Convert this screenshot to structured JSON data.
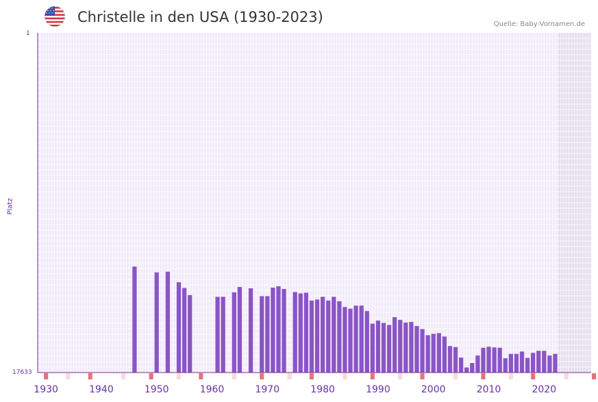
{
  "header": {
    "title": "Christelle in den USA (1930-2023)",
    "source": "Quelle: Baby-Vornamen.de",
    "flag_icon": "us-flag-icon"
  },
  "colors": {
    "bar": "#8a55c6",
    "grid_bg": "#f1ebf9",
    "grid_line": "#ffffff",
    "future_bg": "#e3dfec",
    "axis": "#7b2a8c",
    "marker_strong": "#e6737d",
    "marker_light": "#f9d9dd",
    "tick_label": "#6a2fa0"
  },
  "chart_data": {
    "type": "bar",
    "title": "Christelle in den USA (1930-2023)",
    "xlabel": "",
    "ylabel": "Platz",
    "y_top_label": "1",
    "y_bottom_label": "17633",
    "xlim": [
      1929,
      2029
    ],
    "future_from": 2023,
    "x_tick_labels": [
      "1930",
      "1940",
      "1950",
      "1960",
      "1970",
      "1980",
      "1990",
      "2000",
      "2010",
      "2020"
    ],
    "x_ticks": [
      1930,
      1940,
      1950,
      1960,
      1970,
      1980,
      1990,
      2000,
      2010,
      2020
    ],
    "bar_height_scale_note": "values are bar heights as percent of plot height",
    "series": [
      {
        "name": "Christelle",
        "years": [
          1946,
          1950,
          1952,
          1954,
          1955,
          1956,
          1961,
          1962,
          1964,
          1965,
          1967,
          1969,
          1970,
          1971,
          1972,
          1973,
          1975,
          1976,
          1977,
          1978,
          1979,
          1980,
          1981,
          1982,
          1983,
          1984,
          1985,
          1986,
          1987,
          1988,
          1989,
          1990,
          1991,
          1992,
          1993,
          1994,
          1995,
          1996,
          1997,
          1998,
          1999,
          2000,
          2001,
          2002,
          2003,
          2004,
          2005,
          2006,
          2007,
          2008,
          2009,
          2010,
          2011,
          2012,
          2013,
          2014,
          2015,
          2016,
          2017,
          2018,
          2019,
          2020,
          2021,
          2022
        ],
        "values": [
          31.2,
          29.5,
          29.7,
          26.6,
          24.9,
          22.8,
          22.3,
          22.3,
          23.6,
          25.2,
          24.8,
          22.5,
          22.5,
          25.0,
          25.4,
          24.6,
          23.7,
          23.3,
          23.5,
          21.2,
          21.5,
          22.3,
          21.2,
          22.3,
          21.0,
          19.3,
          18.8,
          19.7,
          19.7,
          18.1,
          14.4,
          15.3,
          14.6,
          14.0,
          16.3,
          15.5,
          14.7,
          14.9,
          13.7,
          12.8,
          11.0,
          11.4,
          11.6,
          10.6,
          7.8,
          7.5,
          4.4,
          1.5,
          2.8,
          5.0,
          7.3,
          7.6,
          7.4,
          7.3,
          4.2,
          5.5,
          5.5,
          6.2,
          4.3,
          5.8,
          6.4,
          6.4,
          5.0,
          5.5
        ]
      }
    ],
    "year_markers_strong": [
      1930,
      1938,
      1949,
      1958,
      1969,
      1978,
      1989,
      1998,
      2009,
      2018,
      2029
    ],
    "year_markers_light": [
      1934,
      1944,
      1954,
      1964,
      1974,
      1984,
      1994,
      2004,
      2014,
      2024
    ]
  }
}
